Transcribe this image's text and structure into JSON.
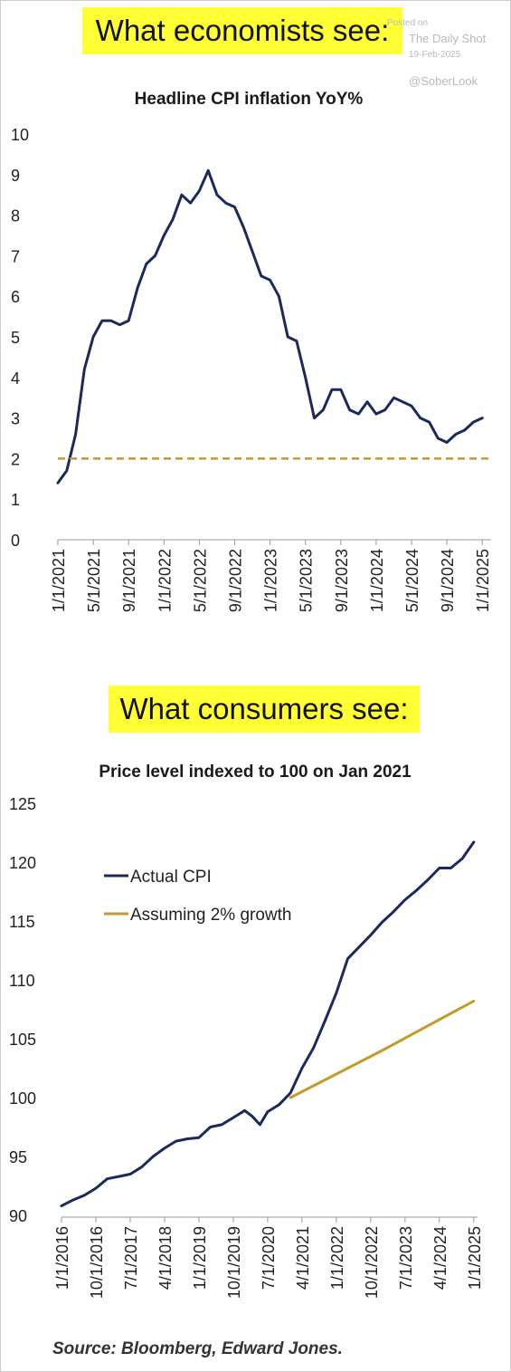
{
  "banners": {
    "top": "What economists see:",
    "bottom": "What consumers see:"
  },
  "watermark": {
    "posted": "Posted on",
    "source": "The Daily Shot",
    "date": "19-Feb-2025",
    "handle": "@SoberLook"
  },
  "source_note": "Source: Bloomberg, Edward Jones.",
  "colors": {
    "navy": "#1b2a5c",
    "gold": "#c59a2c",
    "banner": "#ffff33"
  },
  "chart_data": [
    {
      "type": "line",
      "title": "Headline CPI inflation YoY%",
      "xlabel": "",
      "ylabel": "",
      "ylim": [
        0,
        10
      ],
      "yticks": [
        "0",
        "1",
        "2",
        "3",
        "4",
        "5",
        "6",
        "7",
        "8",
        "9",
        "10"
      ],
      "xticks": [
        "1/1/2021",
        "5/1/2021",
        "9/1/2021",
        "1/1/2022",
        "5/1/2022",
        "9/1/2022",
        "1/1/2023",
        "5/1/2023",
        "9/1/2023",
        "1/1/2024",
        "5/1/2024",
        "9/1/2024",
        "1/1/2025"
      ],
      "x_range": [
        "2021-01",
        "2025-02"
      ],
      "grid": false,
      "series": [
        {
          "x": [
            "2021-01",
            "2021-02",
            "2021-03",
            "2021-04",
            "2021-05",
            "2021-06",
            "2021-07",
            "2021-08",
            "2021-09",
            "2021-10",
            "2021-11",
            "2021-12",
            "2022-01",
            "2022-02",
            "2022-03",
            "2022-04",
            "2022-05",
            "2022-06",
            "2022-07",
            "2022-08",
            "2022-09",
            "2022-10",
            "2022-11",
            "2022-12",
            "2023-01",
            "2023-02",
            "2023-03",
            "2023-04",
            "2023-05",
            "2023-06",
            "2023-07",
            "2023-08",
            "2023-09",
            "2023-10",
            "2023-11",
            "2023-12",
            "2024-01",
            "2024-02",
            "2024-03",
            "2024-04",
            "2024-05",
            "2024-06",
            "2024-07",
            "2024-08",
            "2024-09",
            "2024-10",
            "2024-11",
            "2024-12",
            "2025-01"
          ],
          "values": [
            1.4,
            1.7,
            2.6,
            4.2,
            5.0,
            5.4,
            5.4,
            5.3,
            5.4,
            6.2,
            6.8,
            7.0,
            7.5,
            7.9,
            8.5,
            8.3,
            8.6,
            9.1,
            8.5,
            8.3,
            8.2,
            7.7,
            7.1,
            6.5,
            6.4,
            6.0,
            5.0,
            4.9,
            4.0,
            3.0,
            3.2,
            3.7,
            3.7,
            3.2,
            3.1,
            3.4,
            3.1,
            3.2,
            3.5,
            3.4,
            3.3,
            3.0,
            2.9,
            2.5,
            2.4,
            2.6,
            2.7,
            2.9,
            3.0
          ],
          "color": "#1b2a5c"
        },
        {
          "x": [
            "2021-01",
            "2025-02"
          ],
          "values": [
            2,
            2
          ],
          "color": "#c59a2c",
          "style": "dashed"
        }
      ]
    },
    {
      "type": "line",
      "title": "Price level indexed to 100 on Jan 2021",
      "xlabel": "",
      "ylabel": "",
      "ylim": [
        90,
        125
      ],
      "yticks": [
        "90",
        "95",
        "100",
        "105",
        "110",
        "115",
        "120",
        "125"
      ],
      "xticks": [
        "1/1/2016",
        "10/1/2016",
        "7/1/2017",
        "4/1/2018",
        "1/1/2019",
        "10/1/2019",
        "7/1/2020",
        "4/1/2021",
        "1/1/2022",
        "10/1/2022",
        "7/1/2023",
        "4/1/2024",
        "1/1/2025"
      ],
      "x_range": [
        "2016-01",
        "2025-02"
      ],
      "legend": "top-left",
      "grid": false,
      "series": [
        {
          "name": "Actual CPI",
          "color": "#1b2a5c",
          "x": [
            "2016-01",
            "2016-04",
            "2016-07",
            "2016-10",
            "2017-01",
            "2017-04",
            "2017-07",
            "2017-10",
            "2018-01",
            "2018-04",
            "2018-07",
            "2018-10",
            "2019-01",
            "2019-04",
            "2019-07",
            "2019-10",
            "2020-01",
            "2020-03",
            "2020-05",
            "2020-07",
            "2020-10",
            "2021-01",
            "2021-04",
            "2021-07",
            "2021-10",
            "2022-01",
            "2022-04",
            "2022-07",
            "2022-10",
            "2023-01",
            "2023-04",
            "2023-07",
            "2023-10",
            "2024-01",
            "2024-04",
            "2024-07",
            "2024-10",
            "2025-01"
          ],
          "values": [
            90.8,
            91.3,
            91.7,
            92.3,
            93.1,
            93.3,
            93.5,
            94.1,
            95.0,
            95.7,
            96.3,
            96.5,
            96.6,
            97.5,
            97.7,
            98.3,
            98.9,
            98.4,
            97.7,
            98.8,
            99.4,
            100.4,
            102.5,
            104.2,
            106.5,
            108.9,
            111.8,
            112.8,
            113.8,
            114.9,
            115.8,
            116.8,
            117.6,
            118.5,
            119.5,
            119.5,
            120.3,
            121.7
          ]
        },
        {
          "name": "Assuming 2% growth",
          "color": "#c59a2c",
          "x": [
            "2021-01",
            "2022-01",
            "2023-01",
            "2024-01",
            "2025-01"
          ],
          "values": [
            100.0,
            102.0,
            104.0,
            106.1,
            108.2
          ]
        }
      ]
    }
  ]
}
